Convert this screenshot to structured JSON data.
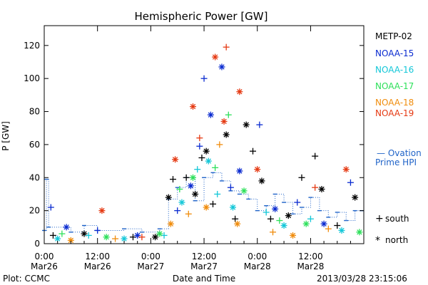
{
  "chart_data": {
    "type": "scatter",
    "title": "Hemispheric Power [GW]",
    "ylabel": "P [GW]",
    "xlabel": "Date and Time",
    "ylim": [
      0,
      132
    ],
    "yticks": [
      0,
      20,
      40,
      60,
      80,
      100,
      120
    ],
    "xlim": [
      "2013-03-26T00:00",
      "2013-03-28T23:59"
    ],
    "xticks": [
      {
        "time": "2013-03-26T00:00",
        "line1": "0:00",
        "line2": "Mar26"
      },
      {
        "time": "2013-03-26T12:00",
        "line1": "12:00",
        "line2": "Mar26"
      },
      {
        "time": "2013-03-27T00:00",
        "line1": "0:00",
        "line2": "Mar27"
      },
      {
        "time": "2013-03-27T12:00",
        "line1": "12:00",
        "line2": "Mar27"
      },
      {
        "time": "2013-03-28T00:00",
        "line1": "0:00",
        "line2": "Mar28"
      },
      {
        "time": "2013-03-28T12:00",
        "line1": "12:00",
        "line2": "Mar28"
      }
    ],
    "grid": false,
    "legend_position": "right",
    "series": [
      {
        "name": "METP-02",
        "color": "#000000",
        "points": [
          {
            "t": "2013-03-26T02:00",
            "v": 5,
            "m": "+"
          },
          {
            "t": "2013-03-26T09:00",
            "v": 6,
            "m": "*"
          },
          {
            "t": "2013-03-26T20:00",
            "v": 4,
            "m": "+"
          },
          {
            "t": "2013-03-27T01:00",
            "v": 4,
            "m": "*"
          },
          {
            "t": "2013-03-27T04:00",
            "v": 28,
            "m": "*"
          },
          {
            "t": "2013-03-27T05:00",
            "v": 39,
            "m": "+"
          },
          {
            "t": "2013-03-27T08:00",
            "v": 40,
            "m": "+"
          },
          {
            "t": "2013-03-27T10:00",
            "v": 30,
            "m": "*"
          },
          {
            "t": "2013-03-27T11:30",
            "v": 52,
            "m": "+"
          },
          {
            "t": "2013-03-27T12:30",
            "v": 56,
            "m": "*"
          },
          {
            "t": "2013-03-27T14:00",
            "v": 24,
            "m": "+"
          },
          {
            "t": "2013-03-27T17:00",
            "v": 66,
            "m": "*"
          },
          {
            "t": "2013-03-27T19:00",
            "v": 15,
            "m": "+"
          },
          {
            "t": "2013-03-27T21:30",
            "v": 72,
            "m": "*"
          },
          {
            "t": "2013-03-27T23:00",
            "v": 56,
            "m": "+"
          },
          {
            "t": "2013-03-28T01:00",
            "v": 38,
            "m": "*"
          },
          {
            "t": "2013-03-28T03:00",
            "v": 15,
            "m": "+"
          },
          {
            "t": "2013-03-28T07:00",
            "v": 17,
            "m": "*"
          },
          {
            "t": "2013-03-28T10:00",
            "v": 40,
            "m": "+"
          },
          {
            "t": "2013-03-28T13:00",
            "v": 53,
            "m": "+"
          },
          {
            "t": "2013-03-28T14:30",
            "v": 33,
            "m": "*"
          },
          {
            "t": "2013-03-28T18:00",
            "v": 11,
            "m": "+"
          },
          {
            "t": "2013-03-28T22:00",
            "v": 28,
            "m": "*"
          }
        ]
      },
      {
        "name": "NOAA-15",
        "color": "#0a2bd0",
        "points": [
          {
            "t": "2013-03-26T01:30",
            "v": 22,
            "m": "+"
          },
          {
            "t": "2013-03-26T05:00",
            "v": 10,
            "m": "*"
          },
          {
            "t": "2013-03-26T12:00",
            "v": 8,
            "m": "+"
          },
          {
            "t": "2013-03-26T21:00",
            "v": 5,
            "m": "*"
          },
          {
            "t": "2013-03-27T06:00",
            "v": 20,
            "m": "+"
          },
          {
            "t": "2013-03-27T09:00",
            "v": 35,
            "m": "*"
          },
          {
            "t": "2013-03-27T11:00",
            "v": 59,
            "m": "+"
          },
          {
            "t": "2013-03-27T12:00",
            "v": 100,
            "m": "+"
          },
          {
            "t": "2013-03-27T13:30",
            "v": 78,
            "m": "*"
          },
          {
            "t": "2013-03-27T16:00",
            "v": 107,
            "m": "*"
          },
          {
            "t": "2013-03-27T18:00",
            "v": 34,
            "m": "+"
          },
          {
            "t": "2013-03-27T20:00",
            "v": 44,
            "m": "*"
          },
          {
            "t": "2013-03-28T00:30",
            "v": 72,
            "m": "+"
          },
          {
            "t": "2013-03-28T04:00",
            "v": 21,
            "m": "*"
          },
          {
            "t": "2013-03-28T09:00",
            "v": 25,
            "m": "+"
          },
          {
            "t": "2013-03-28T15:00",
            "v": 12,
            "m": "*"
          },
          {
            "t": "2013-03-28T21:00",
            "v": 37,
            "m": "+"
          }
        ]
      },
      {
        "name": "NOAA-16",
        "color": "#13c7d8",
        "points": [
          {
            "t": "2013-03-26T03:00",
            "v": 3,
            "m": "*"
          },
          {
            "t": "2013-03-26T10:00",
            "v": 5,
            "m": "+"
          },
          {
            "t": "2013-03-26T18:00",
            "v": 3,
            "m": "*"
          },
          {
            "t": "2013-03-27T03:00",
            "v": 5,
            "m": "+"
          },
          {
            "t": "2013-03-27T07:00",
            "v": 25,
            "m": "*"
          },
          {
            "t": "2013-03-27T10:30",
            "v": 45,
            "m": "+"
          },
          {
            "t": "2013-03-27T13:00",
            "v": 50,
            "m": "*"
          },
          {
            "t": "2013-03-27T15:00",
            "v": 30,
            "m": "+"
          },
          {
            "t": "2013-03-27T18:30",
            "v": 22,
            "m": "*"
          },
          {
            "t": "2013-03-28T02:00",
            "v": 19,
            "m": "+"
          },
          {
            "t": "2013-03-28T06:00",
            "v": 11,
            "m": "*"
          },
          {
            "t": "2013-03-28T12:00",
            "v": 15,
            "m": "+"
          },
          {
            "t": "2013-03-28T19:00",
            "v": 8,
            "m": "*"
          }
        ]
      },
      {
        "name": "NOAA-17",
        "color": "#2de05a",
        "points": [
          {
            "t": "2013-03-26T04:00",
            "v": 6,
            "m": "+"
          },
          {
            "t": "2013-03-26T14:00",
            "v": 4,
            "m": "*"
          },
          {
            "t": "2013-03-27T02:00",
            "v": 6,
            "m": "*"
          },
          {
            "t": "2013-03-27T06:30",
            "v": 33,
            "m": "+"
          },
          {
            "t": "2013-03-27T09:30",
            "v": 40,
            "m": "*"
          },
          {
            "t": "2013-03-27T14:30",
            "v": 46,
            "m": "+"
          },
          {
            "t": "2013-03-27T17:30",
            "v": 78,
            "m": "+"
          },
          {
            "t": "2013-03-27T21:00",
            "v": 32,
            "m": "*"
          },
          {
            "t": "2013-03-28T05:00",
            "v": 14,
            "m": "+"
          },
          {
            "t": "2013-03-28T11:00",
            "v": 12,
            "m": "*"
          },
          {
            "t": "2013-03-28T23:00",
            "v": 7,
            "m": "*"
          }
        ]
      },
      {
        "name": "NOAA-18",
        "color": "#f08c0c",
        "points": [
          {
            "t": "2013-03-26T06:00",
            "v": 2,
            "m": "*"
          },
          {
            "t": "2013-03-26T16:00",
            "v": 3,
            "m": "+"
          },
          {
            "t": "2013-03-27T04:30",
            "v": 12,
            "m": "*"
          },
          {
            "t": "2013-03-27T08:30",
            "v": 18,
            "m": "+"
          },
          {
            "t": "2013-03-27T12:30",
            "v": 22,
            "m": "*"
          },
          {
            "t": "2013-03-27T15:30",
            "v": 60,
            "m": "+"
          },
          {
            "t": "2013-03-27T19:30",
            "v": 12,
            "m": "*"
          },
          {
            "t": "2013-03-28T03:30",
            "v": 7,
            "m": "+"
          },
          {
            "t": "2013-03-28T08:00",
            "v": 5,
            "m": "*"
          },
          {
            "t": "2013-03-28T16:00",
            "v": 9,
            "m": "+"
          }
        ]
      },
      {
        "name": "NOAA-19",
        "color": "#e53912",
        "points": [
          {
            "t": "2013-03-26T13:00",
            "v": 20,
            "m": "*"
          },
          {
            "t": "2013-03-26T22:00",
            "v": 4,
            "m": "+"
          },
          {
            "t": "2013-03-27T05:30",
            "v": 51,
            "m": "*"
          },
          {
            "t": "2013-03-27T09:30",
            "v": 83,
            "m": "*"
          },
          {
            "t": "2013-03-27T11:00",
            "v": 64,
            "m": "+"
          },
          {
            "t": "2013-03-27T14:30",
            "v": 113,
            "m": "*"
          },
          {
            "t": "2013-03-27T16:30",
            "v": 74,
            "m": "*"
          },
          {
            "t": "2013-03-27T17:00",
            "v": 119,
            "m": "+"
          },
          {
            "t": "2013-03-27T20:00",
            "v": 92,
            "m": "*"
          },
          {
            "t": "2013-03-28T00:00",
            "v": 45,
            "m": "*"
          },
          {
            "t": "2013-03-28T13:00",
            "v": 34,
            "m": "+"
          },
          {
            "t": "2013-03-28T20:00",
            "v": 45,
            "m": "*"
          }
        ]
      }
    ],
    "ovation": {
      "name": "Ovation Prime HPI",
      "color": "#1f63c8",
      "points": [
        {
          "t": "2013-03-26T00:00",
          "v": 8
        },
        {
          "t": "2013-03-26T00:30",
          "v": 39
        },
        {
          "t": "2013-03-26T01:00",
          "v": 10
        },
        {
          "t": "2013-03-26T06:00",
          "v": 7
        },
        {
          "t": "2013-03-26T09:00",
          "v": 11
        },
        {
          "t": "2013-03-26T12:00",
          "v": 8
        },
        {
          "t": "2013-03-26T18:00",
          "v": 9
        },
        {
          "t": "2013-03-26T22:00",
          "v": 7
        },
        {
          "t": "2013-03-27T02:00",
          "v": 9
        },
        {
          "t": "2013-03-27T04:00",
          "v": 27
        },
        {
          "t": "2013-03-27T06:00",
          "v": 34
        },
        {
          "t": "2013-03-27T08:00",
          "v": 40
        },
        {
          "t": "2013-03-27T10:00",
          "v": 26
        },
        {
          "t": "2013-03-27T12:00",
          "v": 40
        },
        {
          "t": "2013-03-27T14:00",
          "v": 43
        },
        {
          "t": "2013-03-27T16:00",
          "v": 38
        },
        {
          "t": "2013-03-27T18:00",
          "v": 32
        },
        {
          "t": "2013-03-27T20:00",
          "v": 30
        },
        {
          "t": "2013-03-27T22:00",
          "v": 27
        },
        {
          "t": "2013-03-28T00:00",
          "v": 20
        },
        {
          "t": "2013-03-28T02:00",
          "v": 23
        },
        {
          "t": "2013-03-28T04:00",
          "v": 30
        },
        {
          "t": "2013-03-28T06:00",
          "v": 25
        },
        {
          "t": "2013-03-28T08:00",
          "v": 18
        },
        {
          "t": "2013-03-28T10:00",
          "v": 22
        },
        {
          "t": "2013-03-28T12:00",
          "v": 28
        },
        {
          "t": "2013-03-28T14:00",
          "v": 20
        },
        {
          "t": "2013-03-28T16:00",
          "v": 16
        },
        {
          "t": "2013-03-28T18:00",
          "v": 19
        },
        {
          "t": "2013-03-28T20:00",
          "v": 14
        },
        {
          "t": "2013-03-28T22:00",
          "v": 20
        },
        {
          "t": "2013-03-28T23:30",
          "v": 20
        }
      ]
    },
    "legend_labels": [
      "METP-02",
      "NOAA-15",
      "NOAA-16",
      "NOAA-17",
      "NOAA-18",
      "NOAA-19"
    ],
    "ovation_label_line1": "— Ovation",
    "ovation_label_line2": "Prime HPI",
    "marker_legend": [
      {
        "symbol": "+",
        "label": "south"
      },
      {
        "symbol": "*",
        "label": "north"
      }
    ]
  },
  "footer": {
    "plot_credit": "Plot: CCMC",
    "timestamp": "2013/03/28 23:15:06"
  }
}
